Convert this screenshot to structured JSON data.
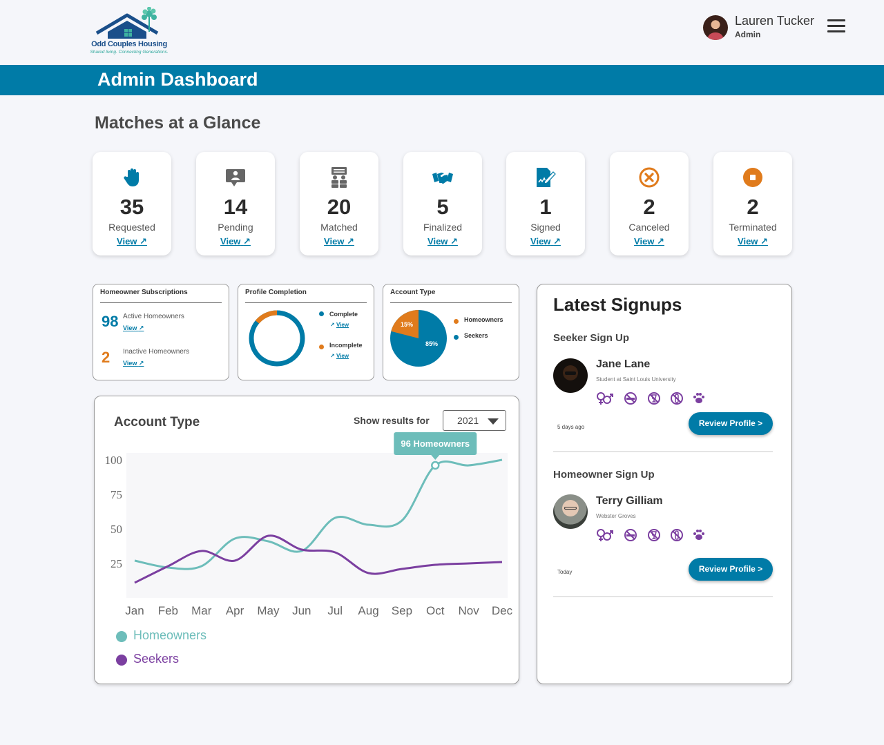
{
  "brand": {
    "name": "Odd Couples Housing",
    "tagline": "Shared living. Connecting Generations.",
    "colors": {
      "primary": "#007ba7",
      "accent": "#e07b1c",
      "teal": "#6dbdba",
      "purple": "#7b3fa0"
    }
  },
  "user": {
    "name": "Lauren Tucker",
    "role": "Admin"
  },
  "banner": {
    "title": "Admin Dashboard"
  },
  "glance": {
    "title": "Matches at a Glance",
    "cards": [
      {
        "icon": "raised-hand-icon",
        "count": "35",
        "label": "Requested",
        "link": "View"
      },
      {
        "icon": "chat-person-icon",
        "count": "14",
        "label": "Pending",
        "link": "View"
      },
      {
        "icon": "people-match-icon",
        "count": "20",
        "label": "Matched",
        "link": "View"
      },
      {
        "icon": "handshake-icon",
        "count": "5",
        "label": "Finalized",
        "link": "View"
      },
      {
        "icon": "signed-document-icon",
        "count": "1",
        "label": "Signed",
        "link": "View"
      },
      {
        "icon": "cancel-circle-icon",
        "count": "2",
        "label": "Canceled",
        "link": "View"
      },
      {
        "icon": "stop-circle-icon",
        "count": "2",
        "label": "Terminated",
        "link": "View"
      }
    ]
  },
  "subscriptions": {
    "title": "Homeowner Subscriptions",
    "active": {
      "count": "98",
      "label": "Active Homeowners",
      "link": "View"
    },
    "inactive": {
      "count": "2",
      "label": "Inactive Homeowners",
      "link": "View"
    }
  },
  "profile_completion": {
    "title": "Profile Completion",
    "complete": {
      "label": "Complete",
      "link": "View",
      "fraction": 0.86
    },
    "incomplete": {
      "label": "Incomplete",
      "link": "View",
      "fraction": 0.14
    }
  },
  "account_type_pie": {
    "title": "Account Type",
    "legend": [
      "Homeowners",
      "Seekers"
    ],
    "slices": [
      {
        "label": "15%",
        "value": 15
      },
      {
        "label": "85%",
        "value": 85
      }
    ]
  },
  "account_chart": {
    "title": "Account Type",
    "filter_label": "Show results for",
    "year": "2021",
    "tooltip": "96 Homeowners"
  },
  "chart_data": {
    "type": "line",
    "categories": [
      "Jan",
      "Feb",
      "Mar",
      "Apr",
      "May",
      "Jun",
      "Jul",
      "Aug",
      "Sep",
      "Oct",
      "Nov",
      "Dec"
    ],
    "y_ticks": [
      "100",
      "75",
      "50",
      "25"
    ],
    "series": [
      {
        "name": "Homeowners",
        "color": "#6dbdba",
        "values": [
          27,
          22,
          23,
          43,
          41,
          34,
          58,
          53,
          56,
          96,
          96,
          100
        ]
      },
      {
        "name": "Seekers",
        "color": "#7b3fa0",
        "values": [
          11,
          23,
          34,
          27,
          45,
          35,
          33,
          18,
          21,
          24,
          25,
          26
        ]
      }
    ],
    "highlight": {
      "series": "Homeowners",
      "category": "Oct",
      "value": 96
    },
    "ylim": [
      0,
      105
    ]
  },
  "signups": {
    "title": "Latest Signups",
    "seeker": {
      "heading": "Seeker Sign Up",
      "name": "Jane Lane",
      "desc": "Student at Saint Louis University",
      "ago": "5 days ago",
      "button": "Review Profile >"
    },
    "homeowner": {
      "heading": "Homeowner Sign Up",
      "name": "Terry Gilliam",
      "desc": "Webster Groves",
      "ago": "Today",
      "button": "Review Profile >"
    },
    "pref_icons": [
      "gender-any-icon",
      "no-smoking-icon",
      "no-alcohol-icon",
      "no-drugs-icon",
      "pet-paw-icon"
    ]
  }
}
